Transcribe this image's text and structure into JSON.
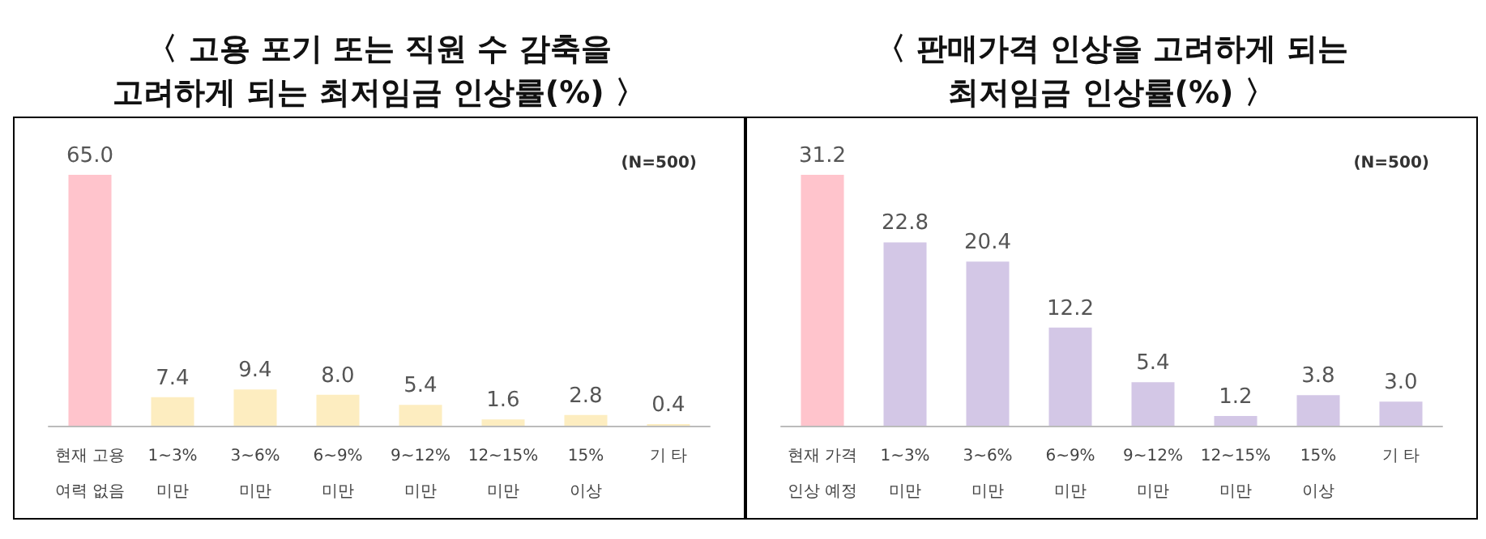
{
  "chart_data": [
    {
      "type": "bar",
      "title": "〈 고용 포기 또는 직원 수 감축을\n고려하게 되는 최저임금 인상률(%) 〉",
      "categories": [
        "현재 고용\n여력 없음",
        "1~3%\n미만",
        "3~6%\n미만",
        "6~9%\n미만",
        "9~12%\n미만",
        "12~15%\n미만",
        "15%\n이상",
        "기 타"
      ],
      "values": [
        65.0,
        7.4,
        9.4,
        8.0,
        5.4,
        1.6,
        2.8,
        0.4
      ],
      "colors": [
        "#ffc4cc",
        "#fdedc0",
        "#fdedc0",
        "#fdedc0",
        "#fdedc0",
        "#fdedc0",
        "#fdedc0",
        "#fdedc0"
      ],
      "value_labels": [
        "65.0",
        "7.4",
        "9.4",
        "8.0",
        "5.4",
        "1.6",
        "2.8",
        "0.4"
      ],
      "annotations": [
        "(N=500)"
      ],
      "grid": false
    },
    {
      "type": "bar",
      "title": "〈 판매가격 인상을 고려하게 되는\n최저임금 인상률(%) 〉",
      "categories": [
        "현재 가격\n인상 예정",
        "1~3%\n미만",
        "3~6%\n미만",
        "6~9%\n미만",
        "9~12%\n미만",
        "12~15%\n미만",
        "15%\n이상",
        "기 타"
      ],
      "values": [
        31.2,
        22.8,
        20.4,
        12.2,
        5.4,
        1.2,
        3.8,
        3.0
      ],
      "colors": [
        "#ffc4cc",
        "#d3c7e6",
        "#d3c7e6",
        "#d3c7e6",
        "#d3c7e6",
        "#d3c7e6",
        "#d3c7e6",
        "#d3c7e6"
      ],
      "value_labels": [
        "31.2",
        "22.8",
        "20.4",
        "12.2",
        "5.4",
        "1.2",
        "3.8",
        "3.0"
      ],
      "annotations": [
        "(N=500)"
      ],
      "grid": false
    }
  ]
}
